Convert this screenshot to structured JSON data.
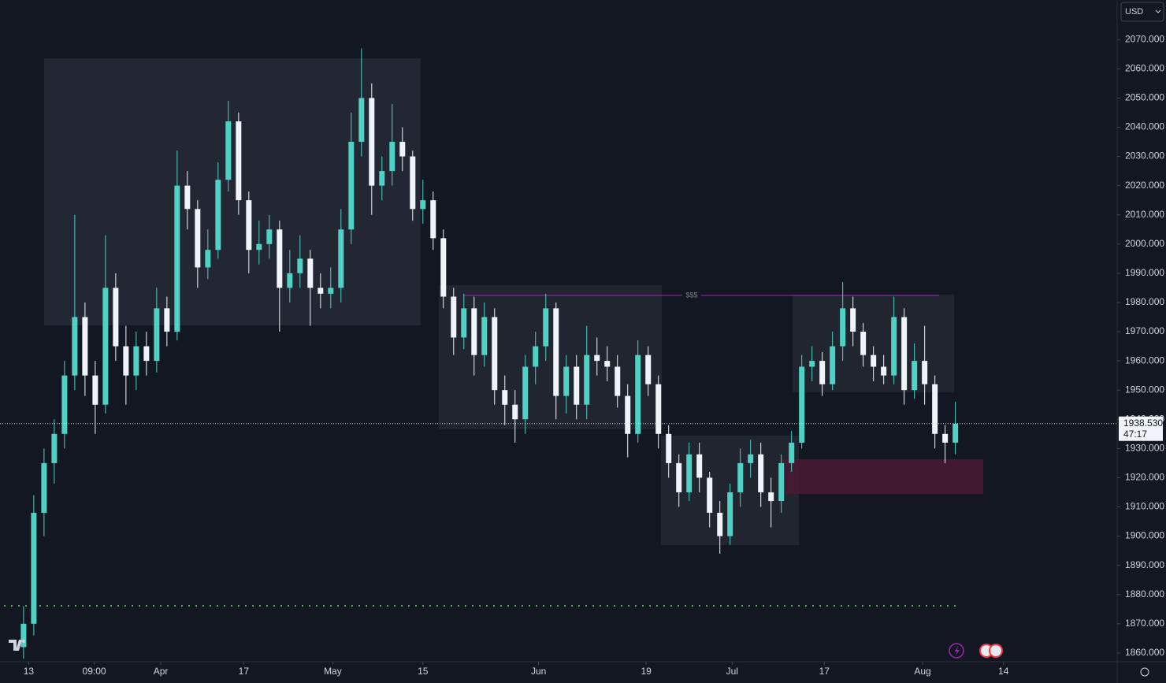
{
  "chart_data": {
    "type": "candlestick",
    "currency": "USD",
    "annotation": "$$$",
    "current_price": 1938.53,
    "current_price_label": "1938.530",
    "countdown": "47:17",
    "up_color": "#4fd1c5",
    "down_color": "#f0f3fa",
    "xlim": [
      -2.3,
      106.8
    ],
    "ylim": [
      1849.72,
      2083.55
    ],
    "xticks": [
      {
        "value": 0.5,
        "label": "13"
      },
      {
        "value": 6.9,
        "label": "09:00"
      },
      {
        "value": 13.4,
        "label": "Apr"
      },
      {
        "value": 21.5,
        "label": "17"
      },
      {
        "value": 30.2,
        "label": "May"
      },
      {
        "value": 39,
        "label": "15"
      },
      {
        "value": 50.3,
        "label": "Jun"
      },
      {
        "value": 60.8,
        "label": "19"
      },
      {
        "value": 69.2,
        "label": "Jul"
      },
      {
        "value": 78.2,
        "label": "17"
      },
      {
        "value": 87.8,
        "label": "Aug"
      },
      {
        "value": 95.7,
        "label": "14"
      }
    ],
    "yticks": [
      {
        "value": 1860,
        "label": "1860.000"
      },
      {
        "value": 1870,
        "label": "1870.000"
      },
      {
        "value": 1880,
        "label": "1880.000"
      },
      {
        "value": 1890,
        "label": "1890.000"
      },
      {
        "value": 1900,
        "label": "1900.000"
      },
      {
        "value": 1910,
        "label": "1910.000"
      },
      {
        "value": 1920,
        "label": "1920.000"
      },
      {
        "value": 1930,
        "label": "1930.000"
      },
      {
        "value": 1940,
        "label": "1940.000"
      },
      {
        "value": 1950,
        "label": "1950.000"
      },
      {
        "value": 1960,
        "label": "1960.000"
      },
      {
        "value": 1970,
        "label": "1970.000"
      },
      {
        "value": 1980,
        "label": "1980.000"
      },
      {
        "value": 1990,
        "label": "1990.000"
      },
      {
        "value": 2000,
        "label": "2000.000"
      },
      {
        "value": 2010,
        "label": "2010.000"
      },
      {
        "value": 2020,
        "label": "2020.000"
      },
      {
        "value": 2030,
        "label": "2030.000"
      },
      {
        "value": 2040,
        "label": "2040.000"
      },
      {
        "value": 2050,
        "label": "2050.000"
      },
      {
        "value": 2060,
        "label": "2060.000"
      },
      {
        "value": 2070,
        "label": "2070.000"
      }
    ],
    "open": [
      1862,
      1870,
      1908,
      1925,
      1935,
      1955,
      1975,
      1955,
      1945,
      1985,
      1965,
      1955,
      1965,
      1960,
      1978,
      1970,
      2020,
      2012,
      1992,
      1998,
      2022,
      2042,
      2015,
      1998,
      2000,
      2005,
      1985,
      1990,
      1995,
      1985,
      1983,
      1985,
      2005,
      2035,
      2050,
      2020,
      2025,
      2035,
      2030,
      2012,
      2015,
      2002,
      1982,
      1968,
      1978,
      1962,
      1975,
      1950,
      1945,
      1940,
      1958,
      1965,
      1978,
      1948,
      1958,
      1945,
      1962,
      1960,
      1958,
      1948,
      1935,
      1962,
      1952,
      1935,
      1925,
      1915,
      1928,
      1920,
      1908,
      1900,
      1915,
      1925,
      1928,
      1915,
      1912,
      1925,
      1932,
      1958,
      1960,
      1952,
      1965,
      1978,
      1970,
      1962,
      1958,
      1955,
      1975,
      1950,
      1960,
      1952,
      1935,
      1932
    ],
    "high": [
      1876,
      1914,
      1930,
      1940,
      1960,
      2010,
      1980,
      1960,
      2003,
      1990,
      1972,
      1970,
      1970,
      1985,
      1982,
      2032,
      2025,
      2015,
      2005,
      2028,
      2049,
      2045,
      2018,
      2008,
      2010,
      2008,
      1998,
      2003,
      1998,
      1990,
      1992,
      2012,
      2045,
      2067,
      2055,
      2030,
      2048,
      2040,
      2032,
      2022,
      2018,
      2005,
      1985,
      1983,
      1982,
      1980,
      1978,
      1955,
      1950,
      1962,
      1970,
      1983,
      1980,
      1962,
      1962,
      1972,
      1968,
      1965,
      1962,
      1952,
      1967,
      1965,
      1955,
      1938,
      1928,
      1932,
      1932,
      1922,
      1912,
      1918,
      1930,
      1933,
      1932,
      1920,
      1928,
      1936,
      1962,
      1965,
      1963,
      1970,
      1987,
      1982,
      1973,
      1965,
      1962,
      1982,
      1978,
      1966,
      1972,
      1955,
      1938,
      1946
    ],
    "low": [
      1858,
      1866,
      1900,
      1918,
      1930,
      1950,
      1948,
      1935,
      1942,
      1960,
      1945,
      1950,
      1955,
      1956,
      1965,
      1967,
      2005,
      1985,
      1988,
      1995,
      2018,
      2010,
      1990,
      1993,
      1995,
      1970,
      1980,
      1985,
      1972,
      1978,
      1978,
      1980,
      2000,
      2030,
      2010,
      2015,
      2020,
      2025,
      2008,
      2007,
      1998,
      1978,
      1962,
      1964,
      1955,
      1958,
      1945,
      1938,
      1932,
      1935,
      1952,
      1960,
      1940,
      1942,
      1940,
      1940,
      1955,
      1953,
      1944,
      1927,
      1932,
      1948,
      1930,
      1920,
      1910,
      1912,
      1915,
      1903,
      1894,
      1897,
      1910,
      1920,
      1910,
      1903,
      1908,
      1922,
      1930,
      1953,
      1948,
      1950,
      1960,
      1965,
      1958,
      1953,
      1952,
      1952,
      1945,
      1947,
      1945,
      1930,
      1925,
      1928
    ],
    "close": [
      1870,
      1908,
      1925,
      1935,
      1955,
      1975,
      1955,
      1945,
      1985,
      1965,
      1955,
      1965,
      1960,
      1978,
      1970,
      2020,
      2012,
      1992,
      1998,
      2022,
      2042,
      2015,
      1998,
      2000,
      2005,
      1985,
      1990,
      1995,
      1985,
      1983,
      1985,
      2005,
      2035,
      2050,
      2020,
      2025,
      2035,
      2030,
      2012,
      2015,
      2002,
      1982,
      1968,
      1978,
      1962,
      1975,
      1950,
      1945,
      1940,
      1958,
      1965,
      1978,
      1948,
      1958,
      1945,
      1962,
      1960,
      1958,
      1948,
      1935,
      1962,
      1952,
      1935,
      1925,
      1915,
      1928,
      1920,
      1908,
      1900,
      1915,
      1925,
      1928,
      1915,
      1912,
      1925,
      1932,
      1958,
      1960,
      1952,
      1965,
      1978,
      1970,
      1962,
      1958,
      1955,
      1975,
      1950,
      1960,
      1952,
      1935,
      1932,
      1938.53
    ]
  }
}
